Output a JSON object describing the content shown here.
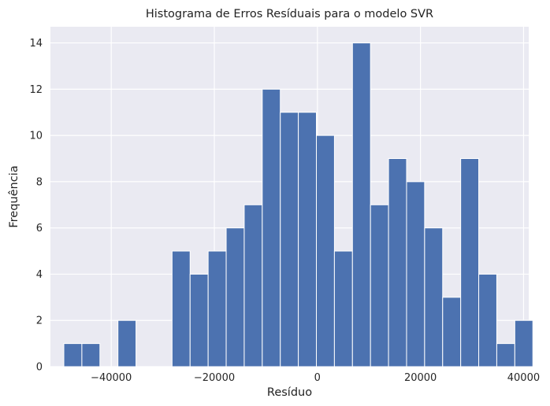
{
  "chart_data": {
    "type": "bar",
    "title": "Histograma de Erros Resíduais para o modelo SVR",
    "xlabel": "Resíduo",
    "ylabel": "Frequência",
    "xlim": [
      -51800,
      41000
    ],
    "ylim": [
      0,
      14.7
    ],
    "xticks": [
      -40000,
      -20000,
      0,
      20000,
      40000
    ],
    "xtick_labels": [
      "−40000",
      "−20000",
      "0",
      "20000",
      "40000"
    ],
    "yticks": [
      0,
      2,
      4,
      6,
      8,
      10,
      12,
      14
    ],
    "ytick_labels": [
      "0",
      "2",
      "4",
      "6",
      "8",
      "10",
      "12",
      "14"
    ],
    "grid": true,
    "bar_color": "#4c72b0",
    "background_color": "#eaeaf2",
    "bins": {
      "start": -49200,
      "width": 3500,
      "counts": [
        1,
        1,
        0,
        2,
        0,
        0,
        5,
        4,
        5,
        6,
        7,
        12,
        11,
        11,
        10,
        5,
        14,
        7,
        9,
        8,
        6,
        3,
        9,
        4,
        1,
        2
      ]
    }
  }
}
